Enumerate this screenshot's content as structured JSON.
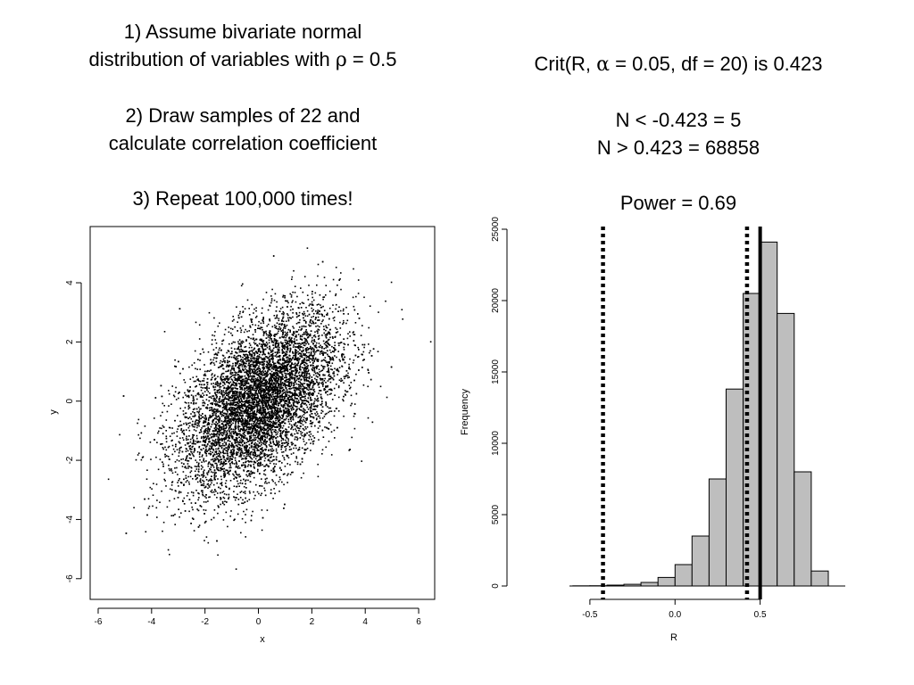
{
  "left_text": {
    "step1_line1": "1) Assume bivariate normal",
    "step1_line2_prefix": "distribution of variables with ",
    "rho_symbol": "ρ",
    "step1_line2_suffix": " = 0.5",
    "step2_line1": "2) Draw samples of 22 and",
    "step2_line2": "calculate correlation coefficient",
    "step3": "3) Repeat 100,000 times!"
  },
  "right_text": {
    "crit_prefix": "Crit(R, ",
    "alpha_symbol": "α",
    "crit_suffix": " = 0.05, df = 20) is 0.423",
    "n_low": "N < -0.423 = 5",
    "n_high": "N > 0.423 = 68858",
    "power": "Power = 0.69"
  },
  "chart_data": [
    {
      "type": "scatter",
      "xlabel": "x",
      "ylabel": "y",
      "xlim": [
        -6.3,
        6.6
      ],
      "ylim": [
        -6.7,
        5.9
      ],
      "x_ticks": [
        -6,
        -4,
        -2,
        0,
        2,
        4,
        6
      ],
      "y_ticks": [
        -6,
        -4,
        -2,
        0,
        2,
        4
      ],
      "correlation": 0.5,
      "n_points_approx": 8000,
      "grid": false
    },
    {
      "type": "bar",
      "xlabel": "R",
      "ylabel": "Frequency",
      "bin_edges": [
        -0.6,
        -0.5,
        -0.4,
        -0.3,
        -0.2,
        -0.1,
        0.0,
        0.1,
        0.2,
        0.3,
        0.4,
        0.5,
        0.6,
        0.7,
        0.8,
        0.9
      ],
      "values": [
        10,
        20,
        60,
        120,
        250,
        600,
        1500,
        3500,
        7500,
        13800,
        20500,
        24100,
        19100,
        8000,
        1050
      ],
      "x_ticks": [
        "-0.5",
        "0.0",
        "0.5"
      ],
      "x_tick_values": [
        -0.5,
        0.0,
        0.5
      ],
      "y_ticks": [
        "0",
        "5000",
        "10000",
        "15000",
        "20000",
        "25000"
      ],
      "y_tick_values": [
        0,
        5000,
        10000,
        15000,
        20000,
        25000
      ],
      "xlim": [
        -0.62,
        1.0
      ],
      "ylim": [
        0,
        25000
      ],
      "bar_color": "#bebebe",
      "vlines": [
        {
          "x": -0.423,
          "style": "dotted"
        },
        {
          "x": 0.423,
          "style": "dotted"
        },
        {
          "x": 0.5,
          "style": "solid"
        }
      ]
    }
  ]
}
